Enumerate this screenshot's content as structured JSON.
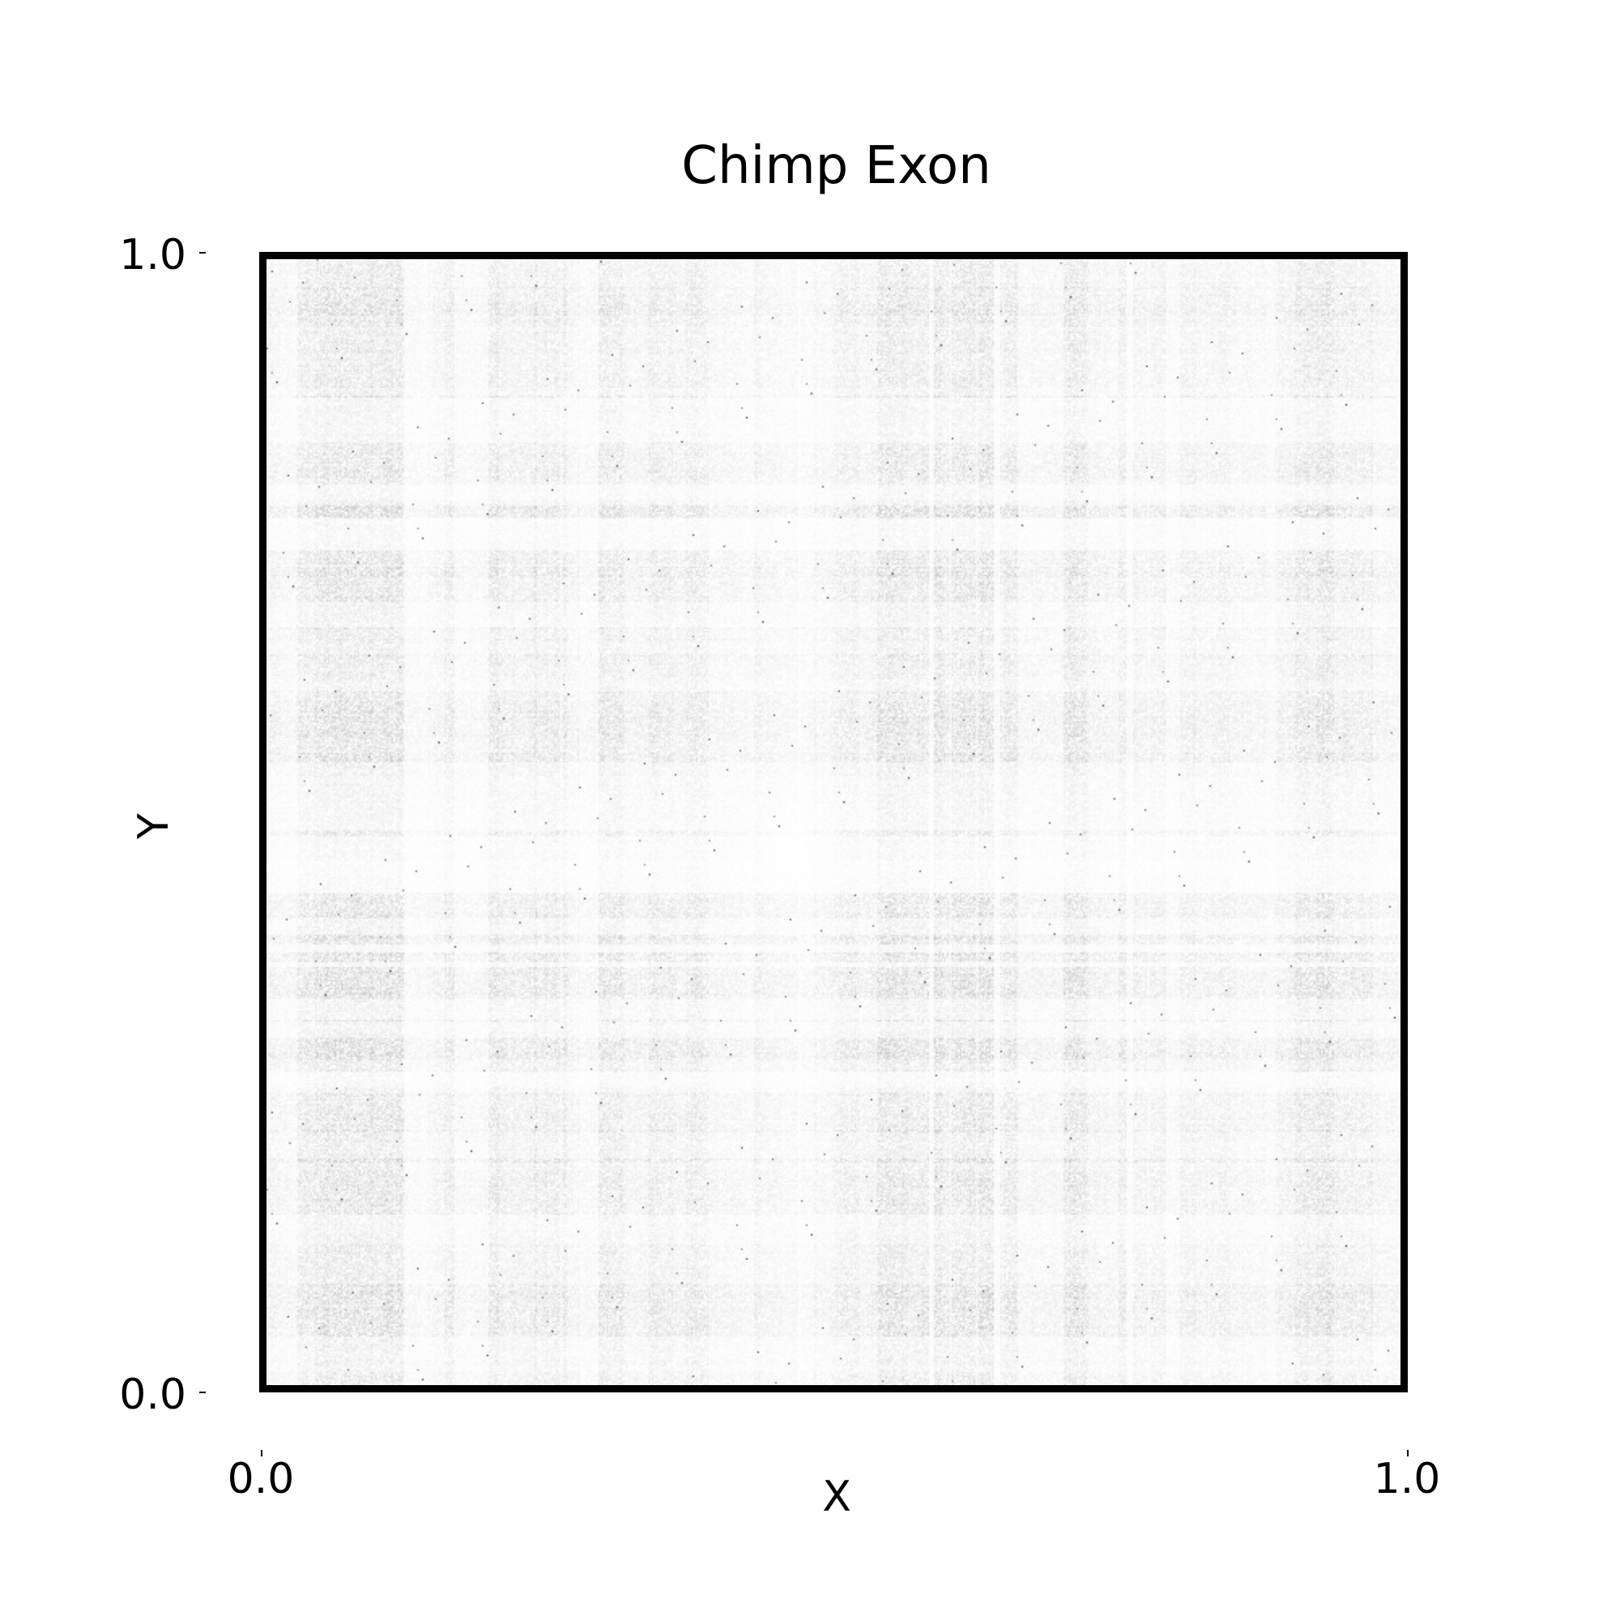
{
  "chart_data": {
    "type": "heatmap",
    "title": "Chimp Exon",
    "xlabel": "X",
    "ylabel": "Y",
    "xlim": [
      0.0,
      1.0
    ],
    "ylim": [
      0.0,
      1.0
    ],
    "x_ticks": [
      "0.0",
      "1.0"
    ],
    "y_ticks": [
      "1.0",
      "0.0"
    ],
    "colormap": "grayscale (white = low density, black = high density)",
    "grid": false,
    "legend": "none",
    "colors": {
      "frame": "#000000",
      "background": "#ffffff",
      "low": "#ffffff",
      "high": "#000000"
    }
  }
}
